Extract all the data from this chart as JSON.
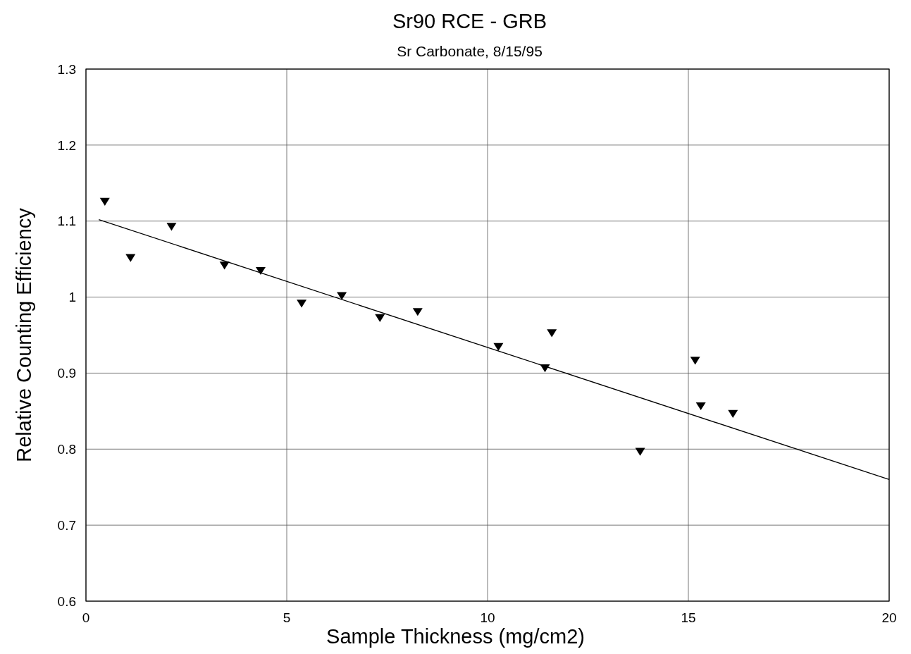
{
  "chart_data": {
    "type": "scatter",
    "title": "Sr90 RCE - GRB",
    "subtitle": "Sr Carbonate,  8/15/95",
    "xlabel": "Sample Thickness (mg/cm2)",
    "ylabel": "Relative Counting Efficiency",
    "xlim": [
      0,
      20
    ],
    "xticks": [
      0,
      5,
      10,
      15,
      20
    ],
    "ylim": [
      0.6,
      1.3
    ],
    "yticks": [
      0.6,
      0.7,
      0.8,
      0.9,
      1,
      1.1,
      1.2,
      1.3
    ],
    "grid": true,
    "marker": "triangle",
    "series": [
      {
        "color": "#000000",
        "x": [
          0.47,
          1.11,
          2.13,
          3.45,
          4.35,
          5.37,
          6.37,
          7.32,
          8.26,
          10.27,
          11.43,
          11.6,
          13.8,
          15.17,
          15.31,
          16.11
        ],
        "values": [
          1.126,
          1.052,
          1.093,
          1.042,
          1.035,
          0.992,
          1.002,
          0.973,
          0.981,
          0.935,
          0.907,
          0.953,
          0.797,
          0.917,
          0.857,
          0.847
        ]
      },
      {
        "type": "line",
        "color": "#000000",
        "marker": "none",
        "line_style": "solid",
        "x": [
          0.32,
          20
        ],
        "values": [
          1.102,
          0.76
        ]
      }
    ]
  }
}
